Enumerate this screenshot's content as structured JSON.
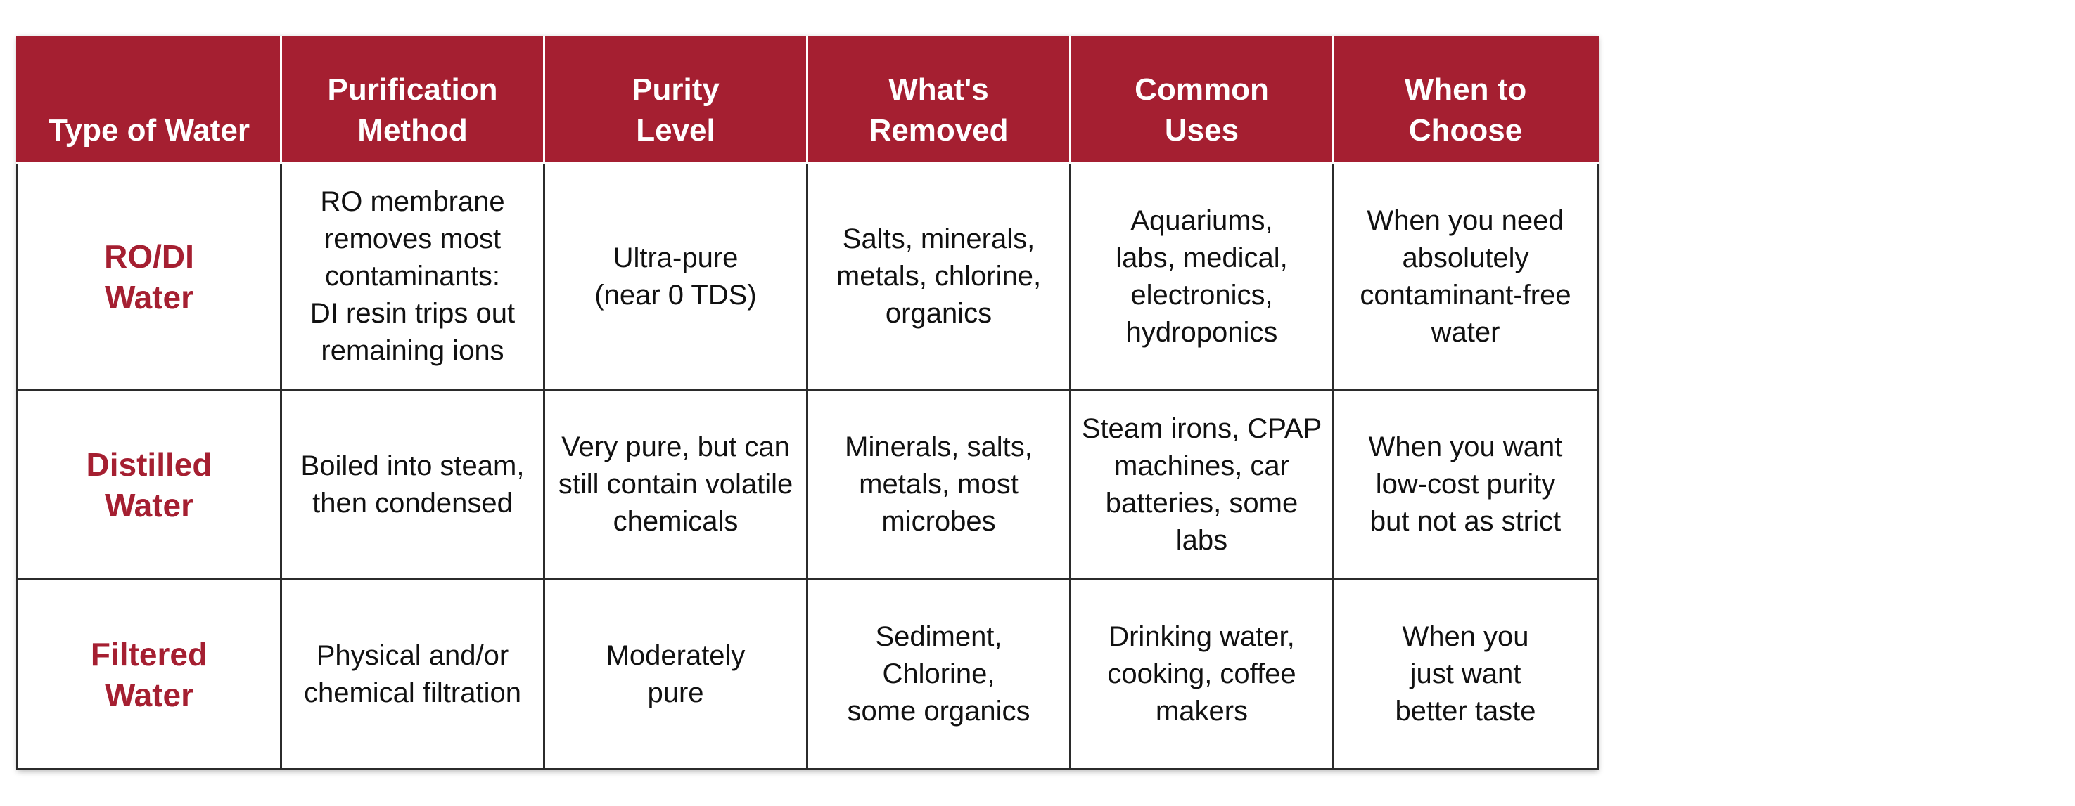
{
  "table": {
    "headers": [
      "Type of Water",
      "Purification\nMethod",
      "Purity\nLevel",
      "What's\nRemoved",
      "Common\nUses",
      "When to\nChoose"
    ],
    "rows": [
      {
        "type": "RO/DI\nWater",
        "method": "RO membrane\nremoves most\ncontaminants:\nDI resin trips out\nremaining ions",
        "purity": "Ultra-pure\n(near 0 TDS)",
        "removed": "Salts, minerals,\nmetals, chlorine,\norganics",
        "uses": "Aquariums,\nlabs, medical,\nelectronics,\nhydroponics",
        "choose": "When you need\nabsolutely\ncontaminant-free\nwater"
      },
      {
        "type": "Distilled\nWater",
        "method": "Boiled into steam,\nthen condensed",
        "purity": "Very pure, but can\nstill contain volatile\nchemicals",
        "removed": "Minerals, salts,\nmetals, most\nmicrobes",
        "uses": "Steam irons, CPAP\nmachines, car\nbatteries, some\nlabs",
        "choose": "When you want\nlow-cost purity\nbut not as strict"
      },
      {
        "type": "Filtered\nWater",
        "method": "Physical and/or\nchemical filtration",
        "purity": "Moderately\npure",
        "removed": "Sediment, Chlorine,\nsome organics",
        "uses": "Drinking water,\ncooking, coffee\nmakers",
        "choose": "When you\njust want\nbetter taste"
      }
    ]
  },
  "colors": {
    "header_bg": "#a51f31",
    "header_text": "#ffffff",
    "type_text": "#a51f31",
    "border": "#2b2b2b"
  }
}
